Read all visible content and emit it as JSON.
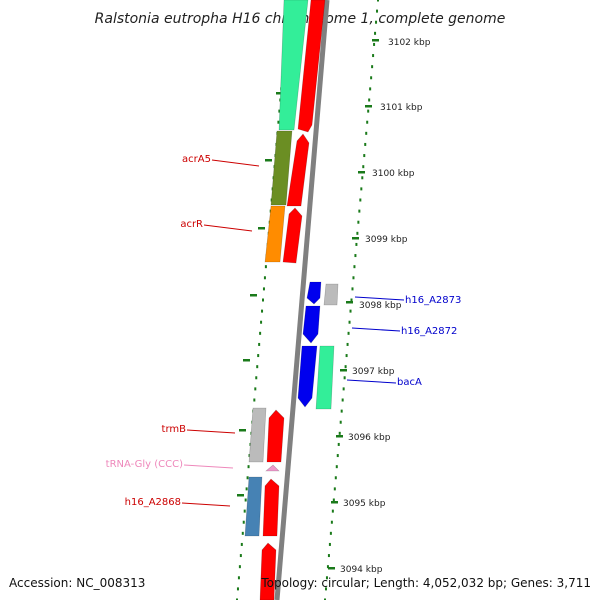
{
  "title": "Ralstonia eutropha H16 chromosome 1, complete genome",
  "footer": {
    "accession": "Accession: NC_008313",
    "summary": "Topology: circular; Length: 4,052,032 bp; Genes: 3,711"
  },
  "colors": {
    "backbone": "#808080",
    "tick": "#1a7a1a",
    "red_feature": "#ff0000",
    "blue_feature": "#0000ee",
    "teal_feature": "#33ee99",
    "olive_feature": "#6b8e23",
    "orange_feature": "#ff8c00",
    "gray_feature": "#bbbbbb",
    "steel_feature": "#4682b4",
    "pink_feature": "#ee99cc",
    "label_red": "#cc0000",
    "label_blue": "#0000cc",
    "label_pink": "#ee88bb"
  },
  "scale": [
    "3102 kbp",
    "3101 kbp",
    "3100 kbp",
    "3099 kbp",
    "3098 kbp",
    "3097 kbp",
    "3096 kbp",
    "3095 kbp",
    "3094 kbp"
  ],
  "gene_labels": [
    {
      "text": "acrA5",
      "color": "#cc0000"
    },
    {
      "text": "acrR",
      "color": "#cc0000"
    },
    {
      "text": "h16_A2873",
      "color": "#0000cc"
    },
    {
      "text": "h16_A2872",
      "color": "#0000cc"
    },
    {
      "text": "bacA",
      "color": "#0000cc"
    },
    {
      "text": "trmB",
      "color": "#cc0000"
    },
    {
      "text": "tRNA-Gly (CCC)",
      "color": "#ee88bb"
    },
    {
      "text": "h16_A2868",
      "color": "#cc0000"
    }
  ]
}
